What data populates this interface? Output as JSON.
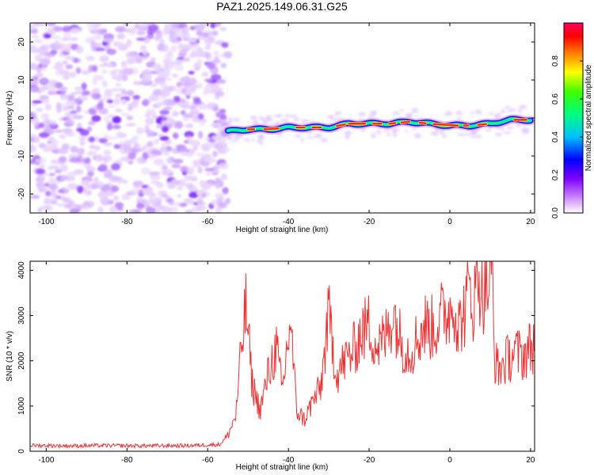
{
  "title": "PAZ1.2025.149.06.31.G25",
  "chart_data": [
    {
      "type": "heatmap",
      "xlabel": "Height of straight line (km)",
      "ylabel": "Frequency (Hz)",
      "xlim": [
        -104,
        21
      ],
      "ylim": [
        -25,
        25
      ],
      "xticks": [
        -100,
        -80,
        -60,
        -40,
        -20,
        0,
        20
      ],
      "yticks": [
        -20,
        -10,
        0,
        10,
        20
      ],
      "colorbar": {
        "label": "Normalized spectral amplitude",
        "range": [
          0,
          1
        ],
        "ticks": [
          "0.0",
          "0.2",
          "0.4",
          "0.6",
          "0.8"
        ],
        "colors": [
          "#ffffff",
          "#cc88ff",
          "#7f00ff",
          "#0000ff",
          "#00c0ff",
          "#00ff80",
          "#ffff00",
          "#ff8000",
          "#ff0000",
          "#ff0060"
        ]
      },
      "noise_region_x": [
        -104,
        -55
      ],
      "signal_ridge": {
        "x": [
          -55,
          -50,
          -45,
          -40,
          -35,
          -30,
          -25,
          -20,
          -15,
          -10,
          -5,
          0,
          5,
          10,
          15,
          20
        ],
        "freq": [
          -3.5,
          -3,
          -3,
          -2.5,
          -2.5,
          -2.5,
          -1.5,
          -1.5,
          -1.5,
          -1,
          -1.5,
          -2,
          -2,
          -1.5,
          -0.5,
          -0.5
        ]
      },
      "grid": false
    },
    {
      "type": "line",
      "xlabel": "Height of straight line (km)",
      "ylabel": "SNR (10 * v/v)",
      "xlim": [
        -104,
        21
      ],
      "ylim": [
        0,
        4200
      ],
      "xticks": [
        -100,
        -80,
        -60,
        -40,
        -20,
        0,
        20
      ],
      "yticks": [
        0,
        1000,
        2000,
        3000,
        4000
      ],
      "series": [
        {
          "color": "#ee3333",
          "x": [
            -104,
            -95,
            -85,
            -75,
            -65,
            -57,
            -55,
            -53,
            -51.5,
            -50.5,
            -49,
            -47,
            -45,
            -43,
            -41.5,
            -39.5,
            -38,
            -36,
            -34,
            -32,
            -30,
            -28,
            -26,
            -24,
            -22,
            -20,
            -18,
            -16,
            -14,
            -12,
            -10,
            -8,
            -6,
            -4,
            -2,
            0,
            1,
            2,
            4,
            5,
            6,
            7,
            8,
            9,
            10,
            10.5,
            11,
            12,
            14,
            16,
            18,
            20,
            21
          ],
          "y": [
            130,
            120,
            125,
            120,
            125,
            150,
            350,
            800,
            2400,
            3200,
            1500,
            900,
            1700,
            2300,
            1300,
            2950,
            900,
            700,
            1100,
            1400,
            3000,
            1700,
            2000,
            2200,
            2600,
            2800,
            2300,
            2500,
            3100,
            2400,
            2200,
            2500,
            2800,
            2700,
            3000,
            3100,
            3400,
            2700,
            3200,
            3700,
            3200,
            4100,
            3400,
            3700,
            3600,
            4200,
            2100,
            1800,
            2000,
            2200,
            2100,
            2300,
            2400
          ]
        }
      ],
      "grid": false
    }
  ]
}
